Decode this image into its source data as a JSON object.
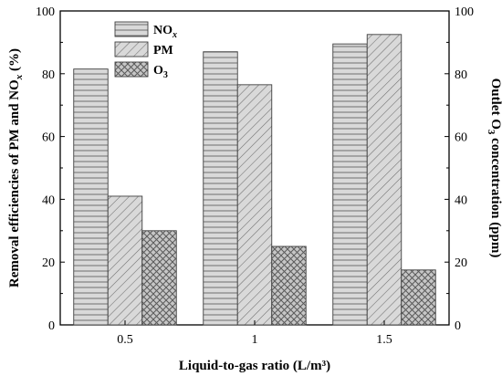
{
  "chart_data": {
    "type": "bar",
    "categories": [
      "0.5",
      "1",
      "1.5"
    ],
    "xlabel": "Liquid-to-gas ratio (L/m³)",
    "ylabel": "Removal efficiencies of PM and NOx (%)",
    "ylabel_parts": [
      "Removal efficiencies of PM and NO",
      "x",
      " (%)"
    ],
    "ylim": [
      0,
      100
    ],
    "yticks": [
      0,
      20,
      40,
      60,
      80,
      100
    ],
    "y2label": "Outlet O3 concentration (ppm)",
    "y2label_parts": [
      "Outlet O",
      "3",
      " concentration (ppm)"
    ],
    "y2lim": [
      0,
      100
    ],
    "y2ticks": [
      0,
      20,
      40,
      60,
      80,
      100
    ],
    "legend_position": "top-left",
    "grid": false,
    "series": [
      {
        "name": "NOx",
        "name_parts": [
          "NO",
          "x"
        ],
        "axis": "left",
        "pattern": "horizontal-lines",
        "values": [
          81.5,
          87.0,
          89.5
        ]
      },
      {
        "name": "PM",
        "name_parts": [
          "PM",
          ""
        ],
        "axis": "left",
        "pattern": "diagonal-lines",
        "values": [
          41.0,
          76.5,
          92.5
        ]
      },
      {
        "name": "O3",
        "name_parts": [
          "O",
          "3"
        ],
        "axis": "right",
        "pattern": "crosshatch",
        "values": [
          30.0,
          25.0,
          17.5
        ]
      }
    ],
    "colors": {
      "bar_fill": "#d9d9d9",
      "bar_stroke": "#404040",
      "pattern_stroke": "#6e6e6e",
      "axis": "#000000"
    }
  }
}
